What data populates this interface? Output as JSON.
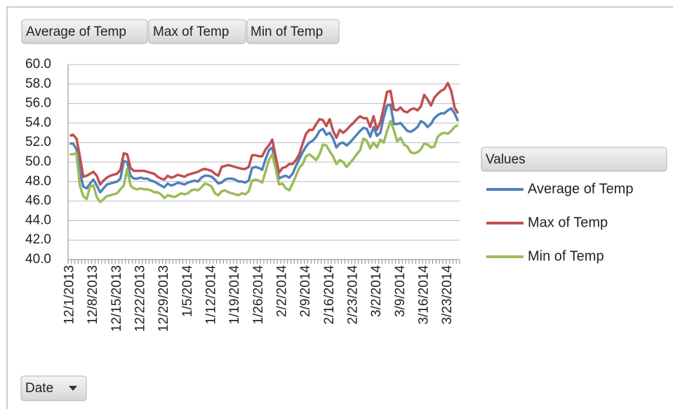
{
  "field_buttons": [
    "Average of Temp",
    "Max of Temp",
    "Min of Temp"
  ],
  "legend_title": "Values",
  "axis_field_button": "Date",
  "chart_data": {
    "type": "line",
    "categories": [
      "12/1/2013",
      null,
      null,
      null,
      null,
      null,
      null,
      "12/8/2013",
      null,
      null,
      null,
      null,
      null,
      null,
      "12/15/2013",
      null,
      null,
      null,
      null,
      null,
      null,
      "12/22/2013",
      null,
      null,
      null,
      null,
      null,
      null,
      "12/29/2013",
      null,
      null,
      null,
      null,
      null,
      null,
      "1/5/2014",
      null,
      null,
      null,
      null,
      null,
      null,
      "1/12/2014",
      null,
      null,
      null,
      null,
      null,
      null,
      "1/19/2014",
      null,
      null,
      null,
      null,
      null,
      null,
      "1/26/2014",
      null,
      null,
      null,
      null,
      null,
      null,
      "2/2/2014",
      null,
      null,
      null,
      null,
      null,
      null,
      "2/9/2014",
      null,
      null,
      null,
      null,
      null,
      null,
      "2/16/2014",
      null,
      null,
      null,
      null,
      null,
      null,
      "2/23/2014",
      null,
      null,
      null,
      null,
      null,
      null,
      "3/2/2014",
      null,
      null,
      null,
      null,
      null,
      null,
      "3/9/2014",
      null,
      null,
      null,
      null,
      null,
      null,
      "3/16/2014",
      null,
      null,
      null,
      null,
      null,
      null,
      "3/23/2014",
      null,
      null,
      null
    ],
    "series": [
      {
        "name": "Average of Temp",
        "color": "#4f81bd",
        "values": [
          51.9,
          51.9,
          51.3,
          49.0,
          47.5,
          47.3,
          47.8,
          48.2,
          47.6,
          46.9,
          47.3,
          47.7,
          47.8,
          47.9,
          48.0,
          48.3,
          50.1,
          50.0,
          48.6,
          48.3,
          48.3,
          48.4,
          48.3,
          48.3,
          48.1,
          48.0,
          47.8,
          47.6,
          47.4,
          47.8,
          47.6,
          47.7,
          47.9,
          47.8,
          47.7,
          47.9,
          48.0,
          48.1,
          48.0,
          48.4,
          48.6,
          48.6,
          48.5,
          48.2,
          47.8,
          47.9,
          48.2,
          48.3,
          48.3,
          48.2,
          48.0,
          48.0,
          47.9,
          48.1,
          49.4,
          49.5,
          49.4,
          49.2,
          50.3,
          51.2,
          51.5,
          49.8,
          48.3,
          48.5,
          48.6,
          48.4,
          48.8,
          49.6,
          50.3,
          51.0,
          51.6,
          52.0,
          52.2,
          52.6,
          53.2,
          53.4,
          52.8,
          53.0,
          52.4,
          51.5,
          51.9,
          52.0,
          51.7,
          52.0,
          52.4,
          52.8,
          53.2,
          53.5,
          53.4,
          52.6,
          53.6,
          52.7,
          53.0,
          54.6,
          55.8,
          55.9,
          53.9,
          53.9,
          54.0,
          53.6,
          53.2,
          53.1,
          53.3,
          53.6,
          54.2,
          54.0,
          53.6,
          53.9,
          54.5,
          54.8,
          55.0,
          55.0,
          55.3,
          55.5,
          55.0,
          54.2
        ]
      },
      {
        "name": "Max of Temp",
        "color": "#c0504d",
        "values": [
          52.7,
          52.8,
          52.4,
          50.6,
          48.5,
          48.6,
          48.8,
          49.0,
          48.6,
          47.7,
          48.1,
          48.4,
          48.6,
          48.7,
          48.8,
          49.2,
          50.9,
          50.8,
          49.4,
          49.1,
          49.1,
          49.1,
          49.1,
          49.0,
          48.9,
          48.8,
          48.5,
          48.3,
          48.2,
          48.6,
          48.4,
          48.5,
          48.7,
          48.6,
          48.5,
          48.7,
          48.8,
          48.9,
          49.0,
          49.2,
          49.3,
          49.2,
          49.1,
          48.8,
          48.6,
          49.5,
          49.6,
          49.7,
          49.6,
          49.5,
          49.4,
          49.3,
          49.3,
          49.5,
          50.7,
          50.7,
          50.6,
          50.6,
          51.3,
          51.7,
          52.3,
          50.6,
          48.9,
          49.4,
          49.5,
          49.8,
          49.8,
          50.2,
          50.8,
          51.9,
          52.9,
          53.3,
          53.3,
          53.9,
          54.4,
          54.3,
          53.7,
          54.4,
          53.2,
          52.5,
          53.3,
          53.0,
          53.3,
          53.7,
          54.0,
          54.4,
          54.7,
          54.5,
          54.5,
          53.6,
          54.7,
          53.3,
          54.1,
          55.6,
          57.2,
          57.3,
          55.4,
          55.3,
          55.6,
          55.2,
          55.1,
          55.4,
          55.5,
          55.3,
          55.7,
          56.9,
          56.4,
          55.8,
          56.6,
          57.0,
          57.3,
          57.5,
          58.1,
          57.3,
          55.6,
          55.0
        ]
      },
      {
        "name": "Min of Temp",
        "color": "#9bbb59",
        "values": [
          50.8,
          50.8,
          50.9,
          47.6,
          46.5,
          46.2,
          47.5,
          47.6,
          46.4,
          45.9,
          46.2,
          46.5,
          46.6,
          46.7,
          46.8,
          47.2,
          47.6,
          49.3,
          47.6,
          47.3,
          47.2,
          47.3,
          47.2,
          47.2,
          47.1,
          46.9,
          46.9,
          46.7,
          46.3,
          46.6,
          46.5,
          46.4,
          46.6,
          46.8,
          46.7,
          46.8,
          47.1,
          47.2,
          47.1,
          47.4,
          47.8,
          47.7,
          47.5,
          46.8,
          46.6,
          47.0,
          47.1,
          46.9,
          46.8,
          46.7,
          46.6,
          46.8,
          46.7,
          47.0,
          48.1,
          48.2,
          48.1,
          47.9,
          49.0,
          50.2,
          50.8,
          49.3,
          47.7,
          47.8,
          47.3,
          47.1,
          47.8,
          48.6,
          49.4,
          49.8,
          50.6,
          50.8,
          50.5,
          50.2,
          50.8,
          51.8,
          51.7,
          51.1,
          50.6,
          49.8,
          50.2,
          50.0,
          49.5,
          49.9,
          50.3,
          50.8,
          51.2,
          52.4,
          52.2,
          51.4,
          52.0,
          51.5,
          52.3,
          52.0,
          53.2,
          54.2,
          53.3,
          52.1,
          52.5,
          51.8,
          51.6,
          51.0,
          50.9,
          51.0,
          51.3,
          51.9,
          51.8,
          51.5,
          51.6,
          52.6,
          52.9,
          53.0,
          52.9,
          53.2,
          53.6,
          53.8
        ]
      }
    ],
    "ylim": [
      40,
      60
    ],
    "yticks": [
      {
        "value": 40,
        "label": "40.0"
      },
      {
        "value": 42,
        "label": "42.0"
      },
      {
        "value": 44,
        "label": "44.0"
      },
      {
        "value": 46,
        "label": "46.0"
      },
      {
        "value": 48,
        "label": "48.0"
      },
      {
        "value": 50,
        "label": "50.0"
      },
      {
        "value": 52,
        "label": "52.0"
      },
      {
        "value": 54,
        "label": "54.0"
      },
      {
        "value": 56,
        "label": "56.0"
      },
      {
        "value": 58,
        "label": "58.0"
      },
      {
        "value": 60,
        "label": "60.0"
      }
    ],
    "grid": true,
    "legend": "right"
  }
}
